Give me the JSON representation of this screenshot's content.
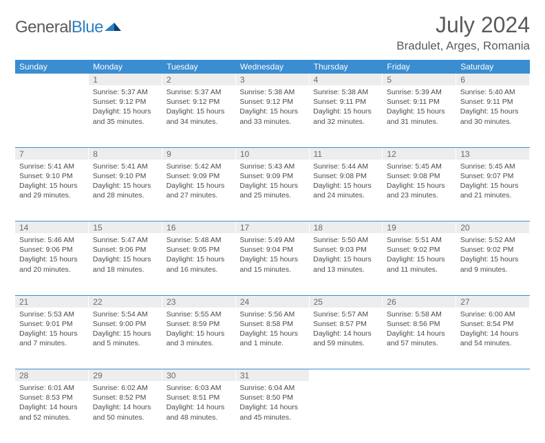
{
  "logo": {
    "text1": "General",
    "text2": "Blue"
  },
  "title": "July 2024",
  "location": "Bradulet, Arges, Romania",
  "daysOfWeek": [
    "Sunday",
    "Monday",
    "Tuesday",
    "Wednesday",
    "Thursday",
    "Friday",
    "Saturday"
  ],
  "colors": {
    "header_bg": "#3a8dd0",
    "header_text": "#ffffff",
    "daynum_bg": "#ededed",
    "border": "#3a8dd0",
    "text": "#4a4a4a"
  },
  "weeks": [
    {
      "nums": [
        "",
        "1",
        "2",
        "3",
        "4",
        "5",
        "6"
      ],
      "cells": [
        null,
        {
          "sr": "Sunrise: 5:37 AM",
          "ss": "Sunset: 9:12 PM",
          "d1": "Daylight: 15 hours",
          "d2": "and 35 minutes."
        },
        {
          "sr": "Sunrise: 5:37 AM",
          "ss": "Sunset: 9:12 PM",
          "d1": "Daylight: 15 hours",
          "d2": "and 34 minutes."
        },
        {
          "sr": "Sunrise: 5:38 AM",
          "ss": "Sunset: 9:12 PM",
          "d1": "Daylight: 15 hours",
          "d2": "and 33 minutes."
        },
        {
          "sr": "Sunrise: 5:38 AM",
          "ss": "Sunset: 9:11 PM",
          "d1": "Daylight: 15 hours",
          "d2": "and 32 minutes."
        },
        {
          "sr": "Sunrise: 5:39 AM",
          "ss": "Sunset: 9:11 PM",
          "d1": "Daylight: 15 hours",
          "d2": "and 31 minutes."
        },
        {
          "sr": "Sunrise: 5:40 AM",
          "ss": "Sunset: 9:11 PM",
          "d1": "Daylight: 15 hours",
          "d2": "and 30 minutes."
        }
      ]
    },
    {
      "nums": [
        "7",
        "8",
        "9",
        "10",
        "11",
        "12",
        "13"
      ],
      "cells": [
        {
          "sr": "Sunrise: 5:41 AM",
          "ss": "Sunset: 9:10 PM",
          "d1": "Daylight: 15 hours",
          "d2": "and 29 minutes."
        },
        {
          "sr": "Sunrise: 5:41 AM",
          "ss": "Sunset: 9:10 PM",
          "d1": "Daylight: 15 hours",
          "d2": "and 28 minutes."
        },
        {
          "sr": "Sunrise: 5:42 AM",
          "ss": "Sunset: 9:09 PM",
          "d1": "Daylight: 15 hours",
          "d2": "and 27 minutes."
        },
        {
          "sr": "Sunrise: 5:43 AM",
          "ss": "Sunset: 9:09 PM",
          "d1": "Daylight: 15 hours",
          "d2": "and 25 minutes."
        },
        {
          "sr": "Sunrise: 5:44 AM",
          "ss": "Sunset: 9:08 PM",
          "d1": "Daylight: 15 hours",
          "d2": "and 24 minutes."
        },
        {
          "sr": "Sunrise: 5:45 AM",
          "ss": "Sunset: 9:08 PM",
          "d1": "Daylight: 15 hours",
          "d2": "and 23 minutes."
        },
        {
          "sr": "Sunrise: 5:45 AM",
          "ss": "Sunset: 9:07 PM",
          "d1": "Daylight: 15 hours",
          "d2": "and 21 minutes."
        }
      ]
    },
    {
      "nums": [
        "14",
        "15",
        "16",
        "17",
        "18",
        "19",
        "20"
      ],
      "cells": [
        {
          "sr": "Sunrise: 5:46 AM",
          "ss": "Sunset: 9:06 PM",
          "d1": "Daylight: 15 hours",
          "d2": "and 20 minutes."
        },
        {
          "sr": "Sunrise: 5:47 AM",
          "ss": "Sunset: 9:06 PM",
          "d1": "Daylight: 15 hours",
          "d2": "and 18 minutes."
        },
        {
          "sr": "Sunrise: 5:48 AM",
          "ss": "Sunset: 9:05 PM",
          "d1": "Daylight: 15 hours",
          "d2": "and 16 minutes."
        },
        {
          "sr": "Sunrise: 5:49 AM",
          "ss": "Sunset: 9:04 PM",
          "d1": "Daylight: 15 hours",
          "d2": "and 15 minutes."
        },
        {
          "sr": "Sunrise: 5:50 AM",
          "ss": "Sunset: 9:03 PM",
          "d1": "Daylight: 15 hours",
          "d2": "and 13 minutes."
        },
        {
          "sr": "Sunrise: 5:51 AM",
          "ss": "Sunset: 9:02 PM",
          "d1": "Daylight: 15 hours",
          "d2": "and 11 minutes."
        },
        {
          "sr": "Sunrise: 5:52 AM",
          "ss": "Sunset: 9:02 PM",
          "d1": "Daylight: 15 hours",
          "d2": "and 9 minutes."
        }
      ]
    },
    {
      "nums": [
        "21",
        "22",
        "23",
        "24",
        "25",
        "26",
        "27"
      ],
      "cells": [
        {
          "sr": "Sunrise: 5:53 AM",
          "ss": "Sunset: 9:01 PM",
          "d1": "Daylight: 15 hours",
          "d2": "and 7 minutes."
        },
        {
          "sr": "Sunrise: 5:54 AM",
          "ss": "Sunset: 9:00 PM",
          "d1": "Daylight: 15 hours",
          "d2": "and 5 minutes."
        },
        {
          "sr": "Sunrise: 5:55 AM",
          "ss": "Sunset: 8:59 PM",
          "d1": "Daylight: 15 hours",
          "d2": "and 3 minutes."
        },
        {
          "sr": "Sunrise: 5:56 AM",
          "ss": "Sunset: 8:58 PM",
          "d1": "Daylight: 15 hours",
          "d2": "and 1 minute."
        },
        {
          "sr": "Sunrise: 5:57 AM",
          "ss": "Sunset: 8:57 PM",
          "d1": "Daylight: 14 hours",
          "d2": "and 59 minutes."
        },
        {
          "sr": "Sunrise: 5:58 AM",
          "ss": "Sunset: 8:56 PM",
          "d1": "Daylight: 14 hours",
          "d2": "and 57 minutes."
        },
        {
          "sr": "Sunrise: 6:00 AM",
          "ss": "Sunset: 8:54 PM",
          "d1": "Daylight: 14 hours",
          "d2": "and 54 minutes."
        }
      ]
    },
    {
      "nums": [
        "28",
        "29",
        "30",
        "31",
        "",
        "",
        ""
      ],
      "cells": [
        {
          "sr": "Sunrise: 6:01 AM",
          "ss": "Sunset: 8:53 PM",
          "d1": "Daylight: 14 hours",
          "d2": "and 52 minutes."
        },
        {
          "sr": "Sunrise: 6:02 AM",
          "ss": "Sunset: 8:52 PM",
          "d1": "Daylight: 14 hours",
          "d2": "and 50 minutes."
        },
        {
          "sr": "Sunrise: 6:03 AM",
          "ss": "Sunset: 8:51 PM",
          "d1": "Daylight: 14 hours",
          "d2": "and 48 minutes."
        },
        {
          "sr": "Sunrise: 6:04 AM",
          "ss": "Sunset: 8:50 PM",
          "d1": "Daylight: 14 hours",
          "d2": "and 45 minutes."
        },
        null,
        null,
        null
      ]
    }
  ]
}
